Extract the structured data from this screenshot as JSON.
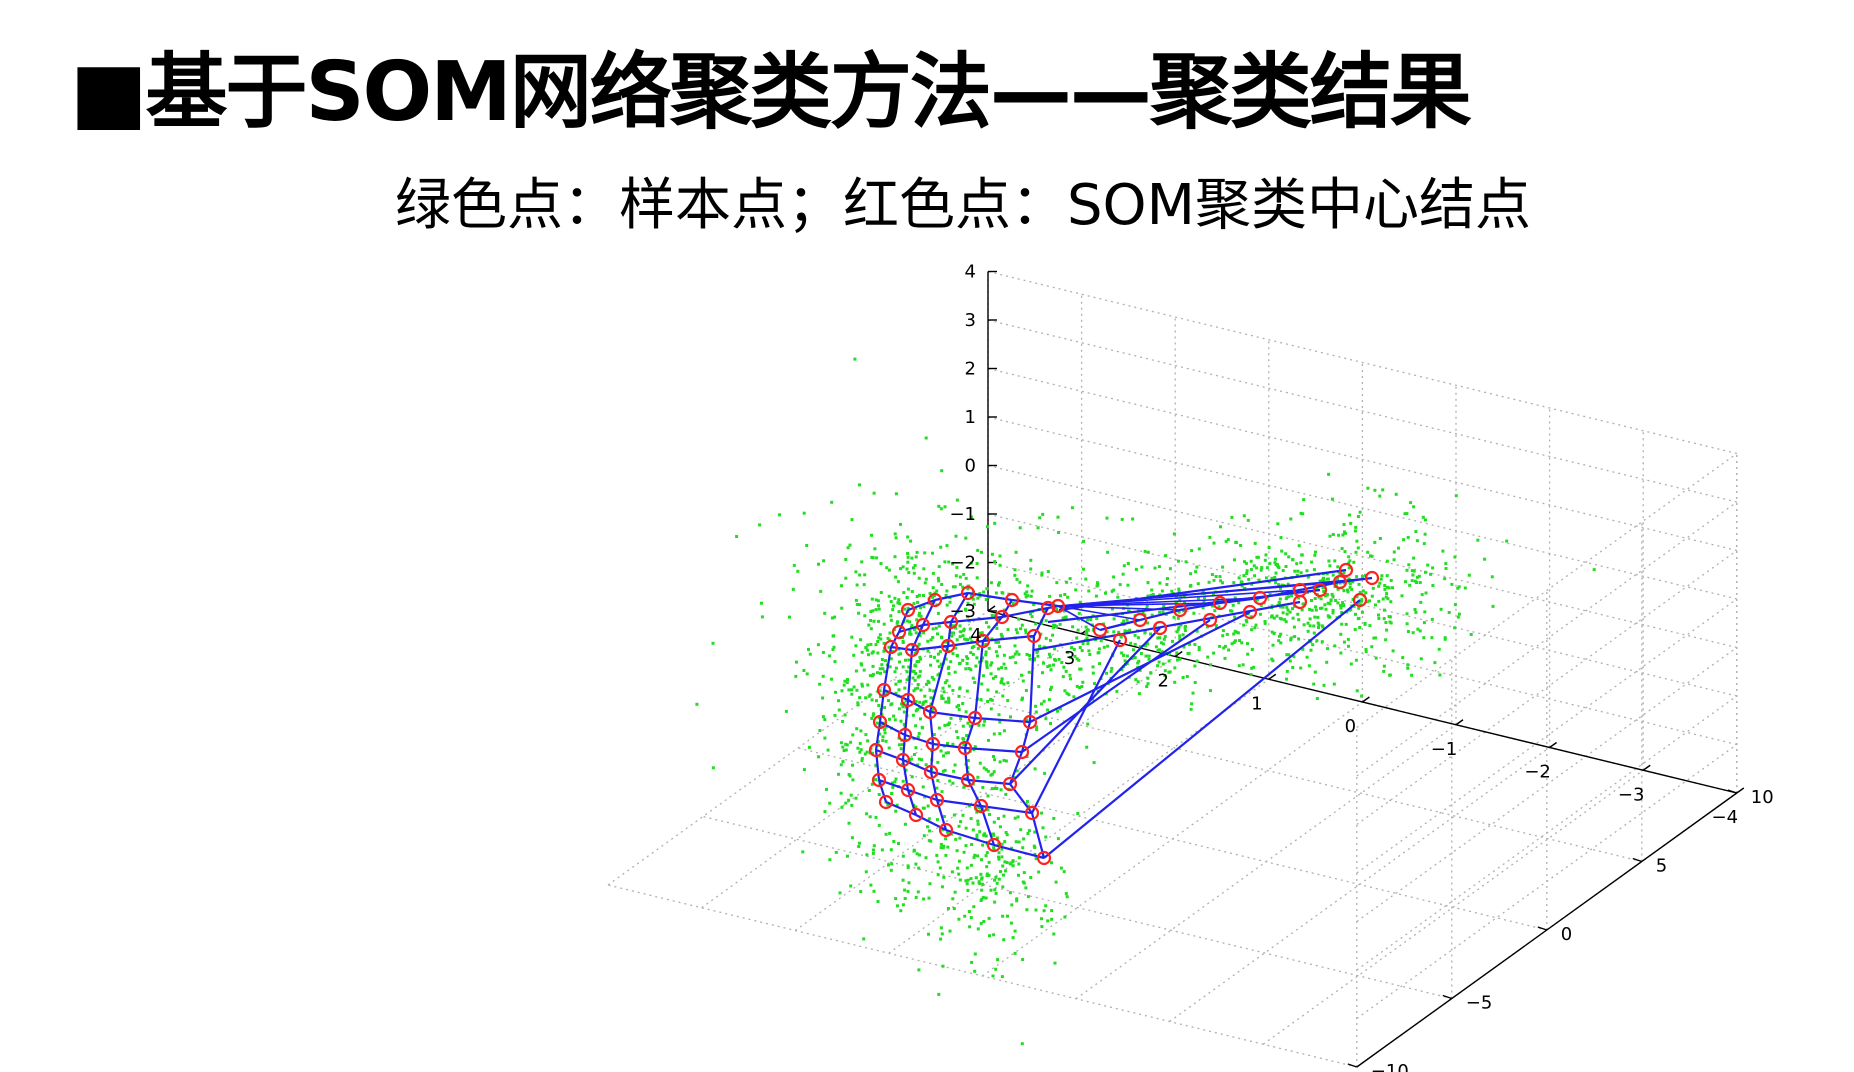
{
  "slide": {
    "title": "■基于SOM网络聚类方法——聚类结果",
    "subtitle": "绿色点：样本点；红色点：SOM聚类中心结点"
  },
  "colors": {
    "sample_points": "#22dd22",
    "som_nodes": "#ff2222",
    "som_grid": "#2222ee",
    "grid_lines": "#b0b0b0"
  },
  "chart_data": {
    "type": "scatter",
    "projection": "3d",
    "grid": true,
    "axes": {
      "x": {
        "ticks": [
          4,
          3,
          2,
          1,
          0,
          -1,
          -2,
          -3,
          -4
        ],
        "range": [
          -4,
          4
        ]
      },
      "y": {
        "ticks": [
          -10,
          -5,
          0,
          5,
          10
        ],
        "range": [
          -10,
          10
        ]
      },
      "z": {
        "ticks": [
          4,
          3,
          2,
          1,
          0,
          -1,
          -2,
          -3
        ],
        "range": [
          -3,
          4
        ]
      }
    },
    "series": [
      {
        "kind": "sample-points",
        "marker": "dot",
        "color": "#22dd22"
      },
      {
        "kind": "som-nodes",
        "marker": "circle",
        "color": "#ff2222"
      }
    ]
  }
}
